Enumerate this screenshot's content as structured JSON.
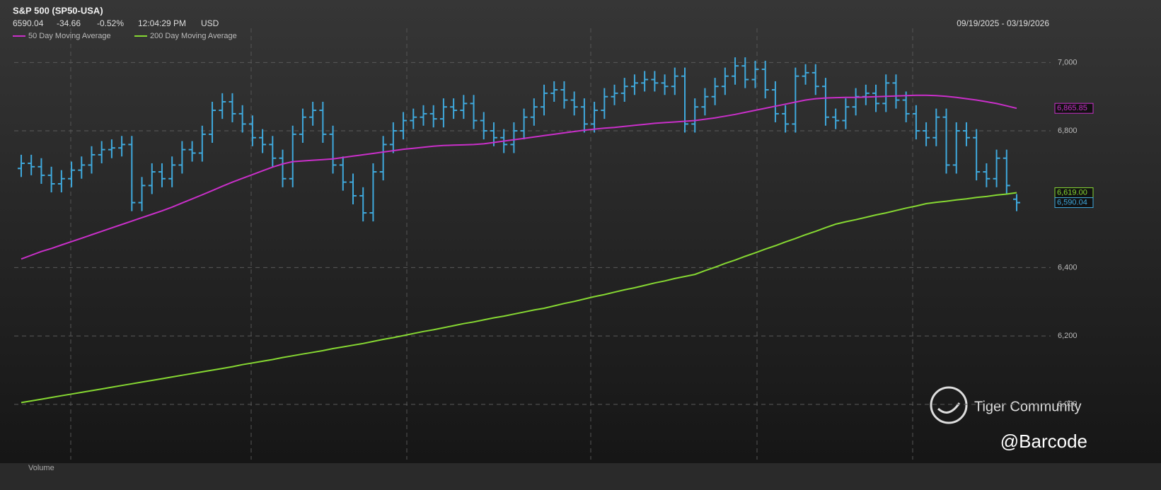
{
  "chart_data": {
    "type": "ohlc",
    "title": "S&P 500 (SP50-USA)",
    "last": 6590.04,
    "change": -34.66,
    "change_pct": "-0.52%",
    "time": "12:04:29 PM",
    "currency": "USD",
    "date_range": "09/19/2025 - 03/19/2026",
    "bars": {
      "color": "#3fa9dd",
      "last_label": "6,590.04",
      "open": [
        6690,
        6705,
        6695,
        6670,
        6645,
        6660,
        6685,
        6700,
        6730,
        6745,
        6750,
        6760,
        6590,
        6640,
        6680,
        6660,
        6700,
        6745,
        6735,
        6790,
        6860,
        6885,
        6850,
        6820,
        6780,
        6760,
        6720,
        6660,
        6790,
        6840,
        6860,
        6790,
        6700,
        6650,
        6610,
        6560,
        6680,
        6760,
        6800,
        6830,
        6840,
        6850,
        6835,
        6870,
        6860,
        6880,
        6830,
        6800,
        6780,
        6760,
        6800,
        6840,
        6870,
        6910,
        6920,
        6890,
        6870,
        6820,
        6860,
        6900,
        6910,
        6930,
        6940,
        6950,
        6940,
        6930,
        6960,
        6820,
        6870,
        6900,
        6930,
        6960,
        6990,
        6950,
        6980,
        6920,
        6850,
        6820,
        6960,
        6970,
        6930,
        6840,
        6830,
        6870,
        6900,
        6910,
        6880,
        6940,
        6890,
        6850,
        6800,
        6780,
        6840,
        6700,
        6800,
        6780,
        6680,
        6660,
        6720,
        6600
      ],
      "high": [
        6730,
        6730,
        6720,
        6695,
        6685,
        6710,
        6725,
        6755,
        6770,
        6775,
        6785,
        6785,
        6665,
        6705,
        6705,
        6725,
        6770,
        6770,
        6815,
        6885,
        6910,
        6910,
        6875,
        6845,
        6805,
        6785,
        6745,
        6815,
        6865,
        6885,
        6885,
        6815,
        6725,
        6675,
        6635,
        6705,
        6785,
        6825,
        6855,
        6865,
        6875,
        6875,
        6895,
        6895,
        6905,
        6905,
        6855,
        6825,
        6805,
        6825,
        6865,
        6895,
        6935,
        6945,
        6945,
        6915,
        6895,
        6885,
        6925,
        6935,
        6955,
        6965,
        6975,
        6975,
        6965,
        6985,
        6985,
        6895,
        6925,
        6955,
        6985,
        7015,
        7015,
        7005,
        7005,
        6945,
        6875,
        6985,
        6995,
        6995,
        6955,
        6865,
        6895,
        6925,
        6935,
        6935,
        6965,
        6965,
        6915,
        6875,
        6825,
        6865,
        6865,
        6825,
        6825,
        6805,
        6705,
        6745,
        6745,
        6615
      ],
      "low": [
        6665,
        6670,
        6645,
        6620,
        6620,
        6635,
        6660,
        6675,
        6705,
        6720,
        6725,
        6565,
        6565,
        6615,
        6635,
        6635,
        6675,
        6710,
        6710,
        6765,
        6835,
        6825,
        6795,
        6755,
        6735,
        6695,
        6635,
        6635,
        6765,
        6815,
        6765,
        6675,
        6625,
        6585,
        6535,
        6535,
        6655,
        6735,
        6775,
        6805,
        6815,
        6810,
        6810,
        6835,
        6835,
        6805,
        6775,
        6755,
        6735,
        6735,
        6775,
        6815,
        6845,
        6885,
        6865,
        6845,
        6795,
        6795,
        6835,
        6875,
        6885,
        6905,
        6915,
        6915,
        6905,
        6905,
        6795,
        6795,
        6845,
        6875,
        6905,
        6935,
        6925,
        6925,
        6895,
        6825,
        6795,
        6795,
        6935,
        6905,
        6815,
        6805,
        6805,
        6845,
        6875,
        6855,
        6855,
        6865,
        6825,
        6775,
        6755,
        6755,
        6675,
        6675,
        6755,
        6655,
        6635,
        6635,
        6615,
        6565
      ],
      "close": [
        6705,
        6695,
        6670,
        6645,
        6660,
        6685,
        6700,
        6730,
        6745,
        6750,
        6760,
        6590,
        6640,
        6680,
        6660,
        6700,
        6745,
        6735,
        6790,
        6860,
        6885,
        6850,
        6820,
        6780,
        6760,
        6720,
        6660,
        6790,
        6840,
        6860,
        6790,
        6700,
        6650,
        6610,
        6560,
        6680,
        6760,
        6800,
        6830,
        6840,
        6850,
        6835,
        6870,
        6860,
        6880,
        6830,
        6800,
        6780,
        6760,
        6800,
        6840,
        6870,
        6910,
        6920,
        6890,
        6870,
        6820,
        6860,
        6900,
        6910,
        6930,
        6940,
        6950,
        6940,
        6930,
        6960,
        6820,
        6870,
        6900,
        6930,
        6960,
        6990,
        6950,
        6980,
        6920,
        6850,
        6820,
        6960,
        6970,
        6930,
        6840,
        6830,
        6870,
        6900,
        6910,
        6880,
        6940,
        6890,
        6850,
        6800,
        6780,
        6840,
        6700,
        6800,
        6780,
        6680,
        6660,
        6720,
        6640,
        6590.04
      ]
    },
    "series": [
      {
        "name": "50 Day Moving Average",
        "color": "#c92fc9",
        "last_label": "6,865.85",
        "values": [
          6425,
          6436,
          6447,
          6456,
          6466,
          6476,
          6486,
          6496,
          6506,
          6516,
          6526,
          6536,
          6546,
          6556,
          6566,
          6577,
          6589,
          6601,
          6613,
          6625,
          6638,
          6650,
          6661,
          6672,
          6683,
          6694,
          6703,
          6710,
          6712,
          6714,
          6716,
          6718,
          6722,
          6726,
          6730,
          6734,
          6738,
          6742,
          6746,
          6749,
          6752,
          6755,
          6757,
          6758,
          6759,
          6760,
          6762,
          6766,
          6770,
          6774,
          6778,
          6782,
          6786,
          6790,
          6794,
          6798,
          6802,
          6805,
          6808,
          6810,
          6813,
          6816,
          6819,
          6822,
          6824,
          6826,
          6828,
          6830,
          6834,
          6838,
          6843,
          6848,
          6854,
          6860,
          6866,
          6872,
          6878,
          6884,
          6890,
          6894,
          6896,
          6897,
          6898,
          6898,
          6899,
          6900,
          6901,
          6902,
          6903,
          6904,
          6904,
          6903,
          6901,
          6898,
          6894,
          6890,
          6885,
          6880,
          6873,
          6865.85
        ]
      },
      {
        "name": "200 Day Moving Average",
        "color": "#86d832",
        "last_label": "6,619.00",
        "values": [
          6005,
          6010,
          6015,
          6020,
          6025,
          6030,
          6035,
          6040,
          6045,
          6050,
          6055,
          6060,
          6065,
          6070,
          6075,
          6080,
          6085,
          6090,
          6095,
          6100,
          6105,
          6110,
          6116,
          6121,
          6126,
          6131,
          6137,
          6142,
          6147,
          6152,
          6157,
          6163,
          6168,
          6173,
          6178,
          6184,
          6190,
          6195,
          6201,
          6207,
          6213,
          6218,
          6224,
          6230,
          6236,
          6241,
          6247,
          6253,
          6258,
          6264,
          6270,
          6276,
          6281,
          6288,
          6295,
          6301,
          6308,
          6315,
          6321,
          6328,
          6335,
          6341,
          6348,
          6355,
          6361,
          6368,
          6374,
          6380,
          6391,
          6401,
          6412,
          6422,
          6433,
          6443,
          6454,
          6464,
          6475,
          6485,
          6496,
          6506,
          6517,
          6527,
          6534,
          6540,
          6547,
          6554,
          6560,
          6567,
          6574,
          6580,
          6587,
          6591,
          6594,
          6598,
          6601,
          6605,
          6608,
          6612,
          6615,
          6619
        ]
      }
    ],
    "ylim": [
      5890,
      7100
    ],
    "yticks": [
      {
        "value": 6000,
        "label": "6,000"
      },
      {
        "value": 6200,
        "label": "6,200"
      },
      {
        "value": 6400,
        "label": "6,400"
      },
      {
        "value": 6800,
        "label": "6,800"
      },
      {
        "value": 7000,
        "label": "7,000"
      }
    ],
    "grid": true
  },
  "volume_label": "Volume",
  "watermark": {
    "brand": "Tiger Community",
    "handle": "@Barcode"
  }
}
